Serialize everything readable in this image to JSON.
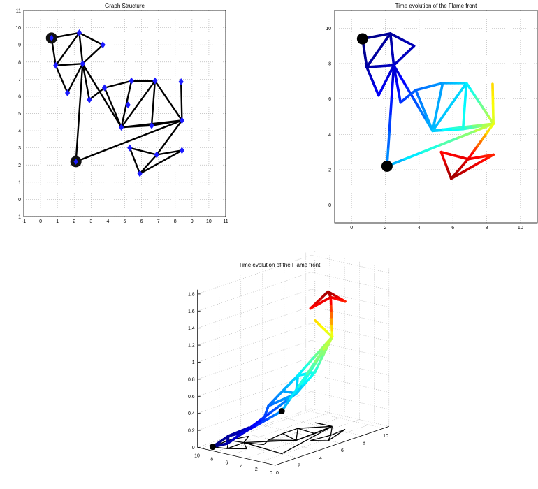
{
  "chart_data": [
    {
      "type": "graph",
      "title": "Graph Structure",
      "xlim": [
        -1,
        11
      ],
      "ylim": [
        -1,
        11
      ],
      "xticks": [
        "-1",
        "0",
        "1",
        "2",
        "3",
        "4",
        "5",
        "6",
        "7",
        "8",
        "9",
        "10",
        "11"
      ],
      "yticks": [
        "-1",
        "0",
        "1",
        "2",
        "3",
        "4",
        "5",
        "6",
        "7",
        "8",
        "9",
        "10",
        "11"
      ],
      "grid": true,
      "nodes": [
        {
          "x": 0.65,
          "y": 9.4,
          "kind": "source"
        },
        {
          "x": 2.1,
          "y": 2.2,
          "kind": "source"
        },
        {
          "x": 2.3,
          "y": 9.7
        },
        {
          "x": 3.7,
          "y": 9.0
        },
        {
          "x": 0.9,
          "y": 7.8
        },
        {
          "x": 2.5,
          "y": 7.9
        },
        {
          "x": 1.6,
          "y": 6.2
        },
        {
          "x": 2.9,
          "y": 5.8
        },
        {
          "x": 3.8,
          "y": 6.5
        },
        {
          "x": 5.4,
          "y": 6.9
        },
        {
          "x": 5.2,
          "y": 5.5
        },
        {
          "x": 4.8,
          "y": 4.2
        },
        {
          "x": 6.8,
          "y": 6.9
        },
        {
          "x": 6.6,
          "y": 4.3
        },
        {
          "x": 8.35,
          "y": 6.85
        },
        {
          "x": 8.4,
          "y": 4.6
        },
        {
          "x": 5.3,
          "y": 3.0
        },
        {
          "x": 6.9,
          "y": 2.6
        },
        {
          "x": 8.4,
          "y": 2.85
        },
        {
          "x": 5.9,
          "y": 1.5
        }
      ],
      "edges": [
        [
          0,
          2
        ],
        [
          0,
          4
        ],
        [
          2,
          3
        ],
        [
          2,
          4
        ],
        [
          2,
          5
        ],
        [
          3,
          5
        ],
        [
          4,
          5
        ],
        [
          4,
          6
        ],
        [
          5,
          6
        ],
        [
          5,
          7
        ],
        [
          5,
          1
        ],
        [
          5,
          11
        ],
        [
          7,
          8
        ],
        [
          8,
          11
        ],
        [
          8,
          9
        ],
        [
          9,
          11
        ],
        [
          9,
          12
        ],
        [
          11,
          12
        ],
        [
          11,
          13
        ],
        [
          11,
          15
        ],
        [
          12,
          13
        ],
        [
          12,
          15
        ],
        [
          13,
          15
        ],
        [
          14,
          15
        ],
        [
          1,
          15
        ],
        [
          15,
          17
        ],
        [
          16,
          17
        ],
        [
          16,
          19
        ],
        [
          17,
          19
        ],
        [
          17,
          18
        ],
        [
          18,
          19
        ]
      ]
    },
    {
      "type": "line",
      "title": "Time evolution of the Flame front",
      "xlim": [
        -1,
        11
      ],
      "ylim": [
        -1,
        11
      ],
      "xticks": [
        "0",
        "2",
        "4",
        "6",
        "8",
        "10"
      ],
      "yticks": [
        "0",
        "2",
        "4",
        "6",
        "8",
        "10"
      ],
      "colormap": "jet",
      "color_range": [
        0,
        1.8
      ]
    },
    {
      "type": "line3d",
      "title": "Time evolution of the Flame front",
      "zlim": [
        0,
        1.85
      ],
      "zticks": [
        "0",
        "0.2",
        "0.4",
        "0.6",
        "0.8",
        "1",
        "1.2",
        "1.4",
        "1.6",
        "1.8"
      ],
      "xticks": [
        "0",
        "2",
        "4",
        "6",
        "8",
        "10"
      ],
      "yticks": [
        "10",
        "8",
        "6",
        "4",
        "2",
        "0"
      ],
      "colormap": "jet",
      "arrival_times": [
        0,
        0.5,
        0.05,
        0.1,
        0.06,
        0.12,
        0.22,
        0.3,
        0.4,
        0.5,
        0.65,
        0.55,
        0.62,
        0.72,
        1.2,
        1.05,
        1.55,
        1.62,
        1.5,
        1.75
      ]
    }
  ]
}
